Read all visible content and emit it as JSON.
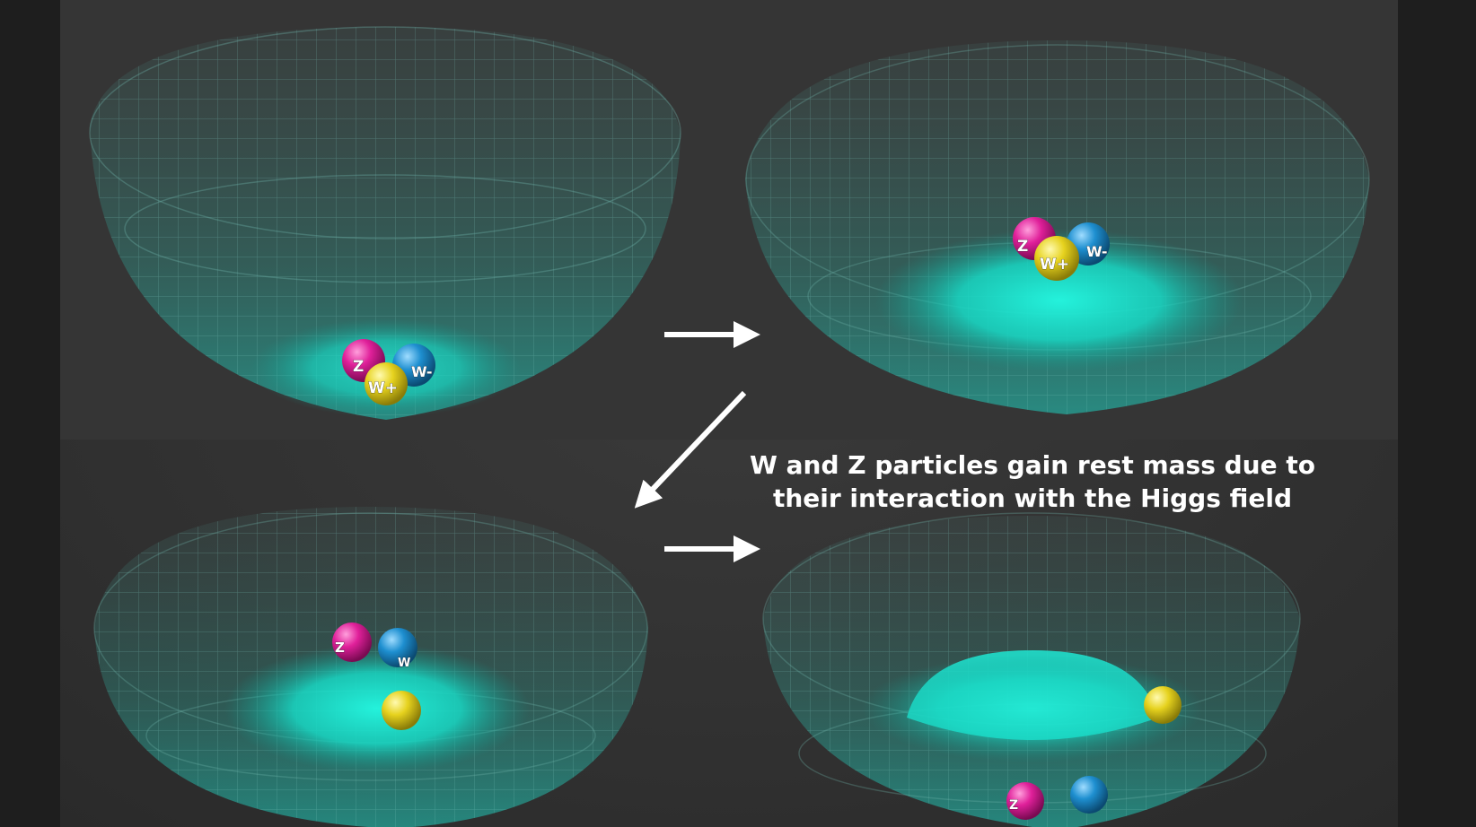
{
  "caption": {
    "line1": "W and Z particles gain rest mass due to",
    "line2": "their interaction with the Higgs field"
  },
  "colors": {
    "background": "#1e1e1e",
    "panel": "#333333",
    "mesh": "#5fa8a0",
    "glow": "#19e6d2",
    "arrow": "#ffffff",
    "z_particle": "#e0209a",
    "w_minus_particle": "#1e8fd0",
    "w_plus_particle": "#e6d21e"
  },
  "particles": {
    "z": "Z",
    "w_minus": "W-",
    "w_plus": "W+",
    "w_partial": "W"
  },
  "panels": [
    {
      "name": "ground-state-bowl",
      "state": "symmetric potential, particles at bottom"
    },
    {
      "name": "sombrero-emerging",
      "state": "particles resting on top of rising field"
    },
    {
      "name": "sombrero-rising",
      "state": "particles beginning to roll off"
    },
    {
      "name": "broken-symmetry",
      "state": "particles rolled into trough"
    }
  ]
}
